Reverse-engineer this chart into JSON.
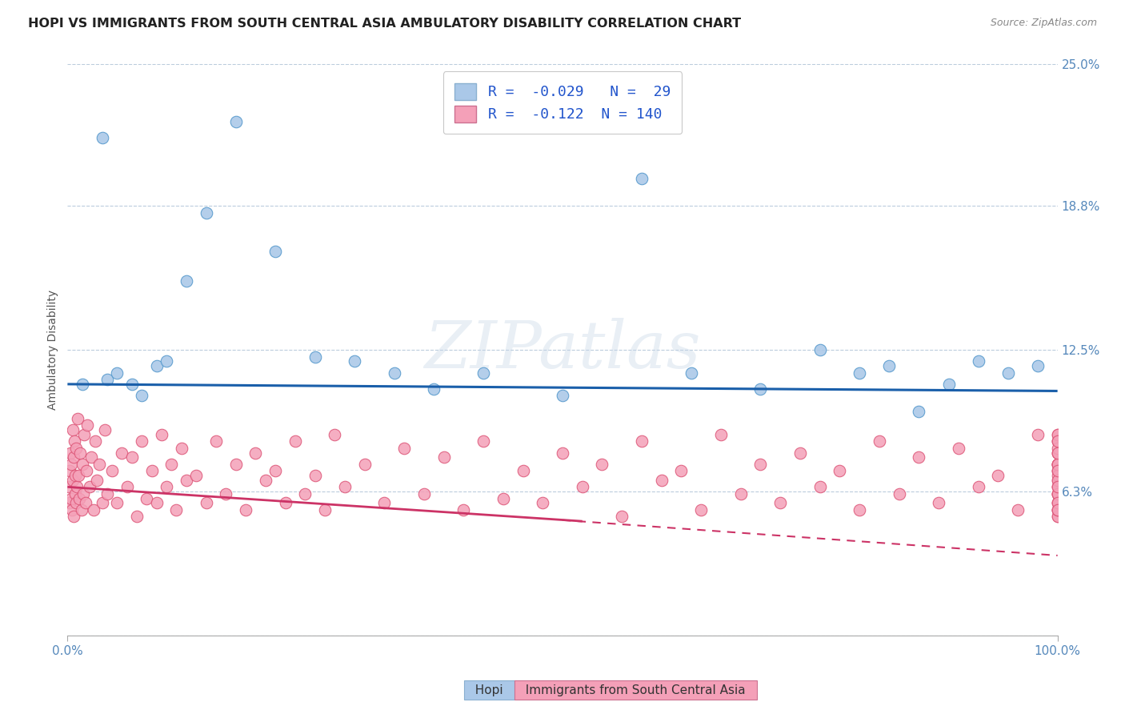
{
  "title": "HOPI VS IMMIGRANTS FROM SOUTH CENTRAL ASIA AMBULATORY DISABILITY CORRELATION CHART",
  "source": "Source: ZipAtlas.com",
  "ylabel": "Ambulatory Disability",
  "xmin": 0.0,
  "xmax": 100.0,
  "ymin": 0.0,
  "ymax": 25.0,
  "hopi_R": -0.029,
  "hopi_N": 29,
  "immigrants_R": -0.122,
  "immigrants_N": 140,
  "hopi_scatter_color": "#aac8e8",
  "hopi_scatter_edge": "#5599cc",
  "immigrants_scatter_color": "#f4a0b8",
  "immigrants_scatter_edge": "#dd5577",
  "hopi_line_color": "#1a5faa",
  "immigrants_line_color": "#cc3366",
  "gridline_color": "#bbccdd",
  "ytick_vals": [
    0.0,
    6.3,
    12.5,
    18.8,
    25.0
  ],
  "ytick_labels": [
    "",
    "6.3%",
    "12.5%",
    "18.8%",
    "25.0%"
  ],
  "tick_label_color": "#5588bb",
  "title_color": "#222222",
  "source_color": "#888888",
  "watermark_text": "ZIPatlas",
  "legend_label_hopi": "Hopi",
  "legend_label_immigrants": "Immigrants from South Central Asia",
  "background_color": "#ffffff",
  "hopi_x": [
    1.5,
    3.5,
    4.0,
    5.0,
    6.5,
    7.5,
    9.0,
    10.0,
    12.0,
    14.0,
    17.0,
    21.0,
    25.0,
    29.0,
    33.0,
    37.0,
    42.0,
    50.0,
    58.0,
    63.0,
    70.0,
    76.0,
    80.0,
    83.0,
    86.0,
    89.0,
    92.0,
    95.0,
    98.0
  ],
  "hopi_y": [
    11.0,
    21.8,
    11.2,
    11.5,
    11.0,
    10.5,
    11.8,
    12.0,
    15.5,
    18.5,
    22.5,
    16.8,
    12.2,
    12.0,
    11.5,
    10.8,
    11.5,
    10.5,
    20.0,
    11.5,
    10.8,
    12.5,
    11.5,
    11.8,
    9.8,
    11.0,
    12.0,
    11.5,
    11.8
  ],
  "imm_x": [
    0.15,
    0.2,
    0.25,
    0.3,
    0.35,
    0.4,
    0.45,
    0.5,
    0.55,
    0.6,
    0.65,
    0.7,
    0.75,
    0.8,
    0.85,
    0.9,
    0.95,
    1.0,
    1.1,
    1.2,
    1.3,
    1.4,
    1.5,
    1.6,
    1.7,
    1.8,
    1.9,
    2.0,
    2.2,
    2.4,
    2.6,
    2.8,
    3.0,
    3.2,
    3.5,
    3.8,
    4.0,
    4.5,
    5.0,
    5.5,
    6.0,
    6.5,
    7.0,
    7.5,
    8.0,
    8.5,
    9.0,
    9.5,
    10.0,
    10.5,
    11.0,
    11.5,
    12.0,
    13.0,
    14.0,
    15.0,
    16.0,
    17.0,
    18.0,
    19.0,
    20.0,
    21.0,
    22.0,
    23.0,
    24.0,
    25.0,
    26.0,
    27.0,
    28.0,
    30.0,
    32.0,
    34.0,
    36.0,
    38.0,
    40.0,
    42.0,
    44.0,
    46.0,
    48.0,
    50.0,
    52.0,
    54.0,
    56.0,
    58.0,
    60.0,
    62.0,
    64.0,
    66.0,
    68.0,
    70.0,
    72.0,
    74.0,
    76.0,
    78.0,
    80.0,
    82.0,
    84.0,
    86.0,
    88.0,
    90.0,
    92.0,
    94.0,
    96.0,
    98.0,
    100.0,
    100.0,
    100.0,
    100.0,
    100.0,
    100.0,
    100.0,
    100.0,
    100.0,
    100.0,
    100.0,
    100.0,
    100.0,
    100.0,
    100.0,
    100.0,
    100.0,
    100.0,
    100.0,
    100.0,
    100.0,
    100.0,
    100.0,
    100.0,
    100.0,
    100.0,
    100.0,
    100.0,
    100.0,
    100.0,
    100.0,
    100.0,
    100.0,
    100.0,
    100.0,
    100.0
  ],
  "imm_y": [
    6.5,
    7.2,
    5.8,
    8.0,
    6.0,
    7.5,
    5.5,
    9.0,
    6.8,
    7.8,
    5.2,
    8.5,
    6.2,
    7.0,
    5.8,
    8.2,
    6.5,
    9.5,
    7.0,
    6.0,
    8.0,
    5.5,
    7.5,
    6.2,
    8.8,
    5.8,
    7.2,
    9.2,
    6.5,
    7.8,
    5.5,
    8.5,
    6.8,
    7.5,
    5.8,
    9.0,
    6.2,
    7.2,
    5.8,
    8.0,
    6.5,
    7.8,
    5.2,
    8.5,
    6.0,
    7.2,
    5.8,
    8.8,
    6.5,
    7.5,
    5.5,
    8.2,
    6.8,
    7.0,
    5.8,
    8.5,
    6.2,
    7.5,
    5.5,
    8.0,
    6.8,
    7.2,
    5.8,
    8.5,
    6.2,
    7.0,
    5.5,
    8.8,
    6.5,
    7.5,
    5.8,
    8.2,
    6.2,
    7.8,
    5.5,
    8.5,
    6.0,
    7.2,
    5.8,
    8.0,
    6.5,
    7.5,
    5.2,
    8.5,
    6.8,
    7.2,
    5.5,
    8.8,
    6.2,
    7.5,
    5.8,
    8.0,
    6.5,
    7.2,
    5.5,
    8.5,
    6.2,
    7.8,
    5.8,
    8.2,
    6.5,
    7.0,
    5.5,
    8.8,
    6.2,
    7.5,
    5.2,
    8.0,
    6.8,
    7.5,
    5.5,
    8.5,
    6.2,
    7.2,
    5.8,
    8.0,
    6.5,
    7.5,
    5.5,
    8.8,
    6.2,
    7.2,
    5.8,
    8.5,
    6.5,
    7.0,
    5.2,
    8.2,
    6.8,
    7.5,
    5.5,
    8.8,
    6.2,
    7.5,
    5.8,
    8.0,
    6.5,
    7.2,
    5.5,
    8.5
  ]
}
